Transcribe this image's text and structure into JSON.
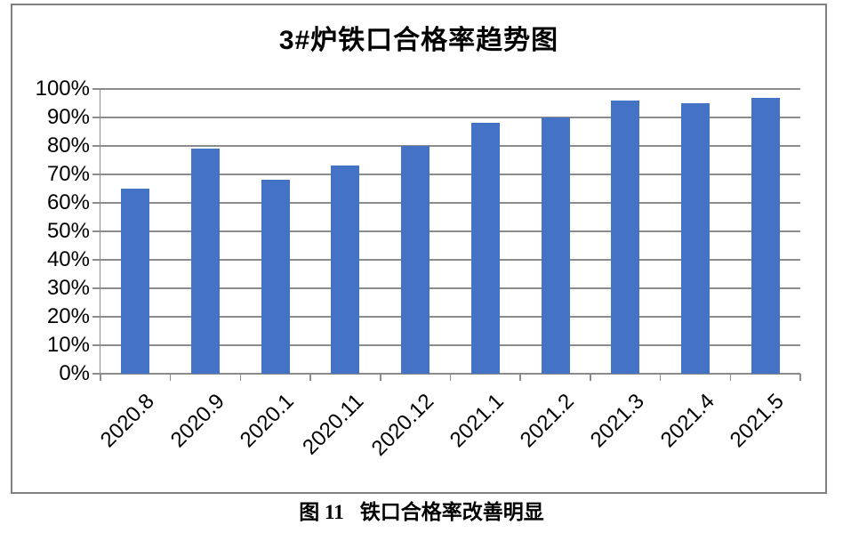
{
  "figure": {
    "title": "3#炉铁口合格率趋势图",
    "caption_label": "图 11",
    "caption_text": "铁口合格率改善明显"
  },
  "chart_data": {
    "type": "bar",
    "title": "3#炉铁口合格率趋势图",
    "categories": [
      "2020.8",
      "2020.9",
      "2020.1",
      "2020.11",
      "2020.12",
      "2021.1",
      "2021.2",
      "2021.3",
      "2021.4",
      "2021.5"
    ],
    "values": [
      65,
      79,
      68,
      73,
      80,
      88,
      90,
      96,
      95,
      97
    ],
    "unit": "%",
    "xlabel": "",
    "ylabel": "",
    "ylim": [
      0,
      100
    ],
    "ytick_step": 10,
    "ytick_labels": [
      "0%",
      "10%",
      "20%",
      "30%",
      "40%",
      "50%",
      "60%",
      "70%",
      "80%",
      "90%",
      "100%"
    ],
    "grid": "horizontal",
    "legend": "none",
    "bar_color": "#4472C4",
    "gridline_color": "#8c8c8c",
    "axis_color": "#8c8c8c",
    "frame_border_color": "#808080",
    "text_color": "#000000"
  }
}
